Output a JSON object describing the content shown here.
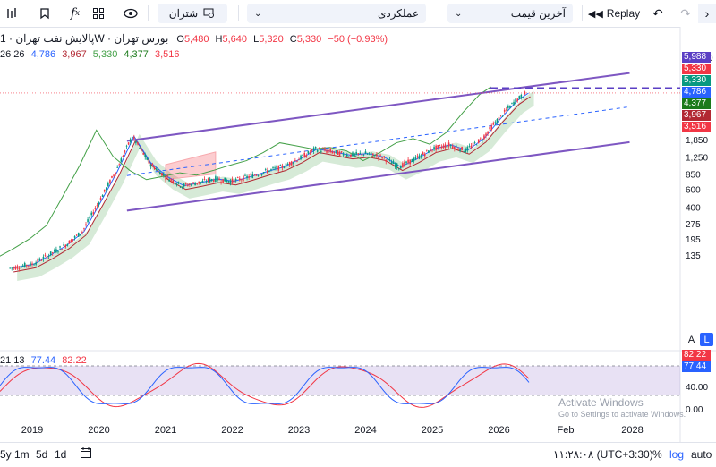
{
  "toolbar": {
    "compare_label": "شتران",
    "chart_type_label": "عملکردی",
    "price_type_label": "آخرین قیمت",
    "replay_label": "Replay"
  },
  "legend": {
    "title": "پالایش نفت تهران · 1W · بورس تهران",
    "o_label": "O",
    "o_value": "5,480",
    "h_label": "H",
    "h_value": "5,640",
    "l_label": "L",
    "l_value": "5,320",
    "c_label": "C",
    "c_value": "5,330",
    "change": "−50 (−0.93%)",
    "ichimoku_params": "26 26",
    "ichimoku_values": [
      "4,786",
      "3,967",
      "5,330",
      "4,377",
      "3,516"
    ]
  },
  "osc_legend": {
    "params": "21 13",
    "k": "77.44",
    "d": "82.22"
  },
  "price_badges": [
    {
      "value": "5,988",
      "color": "#5b3fc4"
    },
    {
      "value": "5,330",
      "color": "#f23645"
    },
    {
      "value": "5,330",
      "color": "#089981"
    },
    {
      "value": "4,786",
      "color": "#2962ff"
    },
    {
      "value": "4,377",
      "color": "#1b7a1b"
    },
    {
      "value": "3,967",
      "color": "#b22833"
    },
    {
      "value": "3,516",
      "color": "#f23645"
    }
  ],
  "osc_badges": [
    {
      "value": "82.22",
      "color": "#f23645"
    },
    {
      "value": "77.44",
      "color": "#2962ff"
    }
  ],
  "watermark": {
    "line1": "Activate Windows",
    "line2": "Go to Settings to activate Windows."
  },
  "bottom_bar": {
    "ranges": [
      "5y",
      "1m",
      "5d",
      "1d"
    ],
    "time": "۱۱:۲۸:۰۸ (UTC+3:30)",
    "percent": "%",
    "log": "log",
    "auto": "auto"
  },
  "axis_buttons": {
    "a": "A",
    "l": "L"
  },
  "chart_data": {
    "type": "candlestick",
    "title": "پالایش نفت تهران · 1W · بورس تهران",
    "scale": "log",
    "x_ticks": [
      "2019",
      "2020",
      "2021",
      "2022",
      "2023",
      "2024",
      "2025",
      "2026",
      "Feb",
      "2028"
    ],
    "y_ticks": [
      12000,
      2600,
      1850,
      1250,
      850,
      600,
      400,
      275,
      195,
      135
    ],
    "osc_ticks": [
      "40.00",
      "0.00"
    ],
    "ohlc_last": {
      "open": 5480,
      "high": 5640,
      "low": 5320,
      "close": 5330,
      "change": -50,
      "change_pct": -0.93
    },
    "price_path": [
      [
        "2018-09",
        100
      ],
      [
        "2019-01",
        110
      ],
      [
        "2019-04",
        135
      ],
      [
        "2019-07",
        170
      ],
      [
        "2019-10",
        230
      ],
      [
        "2020-01",
        450
      ],
      [
        "2020-04",
        900
      ],
      [
        "2020-07",
        2000
      ],
      [
        "2020-10",
        1100
      ],
      [
        "2021-01",
        800
      ],
      [
        "2021-04",
        650
      ],
      [
        "2021-07",
        700
      ],
      [
        "2021-10",
        760
      ],
      [
        "2022-01",
        720
      ],
      [
        "2022-04",
        800
      ],
      [
        "2022-07",
        900
      ],
      [
        "2022-10",
        1000
      ],
      [
        "2023-01",
        1200
      ],
      [
        "2023-04",
        1500
      ],
      [
        "2023-07",
        1400
      ],
      [
        "2023-10",
        1300
      ],
      [
        "2024-01",
        1350
      ],
      [
        "2024-04",
        1250
      ],
      [
        "2024-07",
        1000
      ],
      [
        "2024-10",
        1200
      ],
      [
        "2025-01",
        1500
      ],
      [
        "2025-04",
        1650
      ],
      [
        "2025-07",
        1450
      ],
      [
        "2025-10",
        1900
      ],
      [
        "2026-01",
        3000
      ],
      [
        "2026-04",
        4500
      ],
      [
        "2026-06",
        5330
      ]
    ],
    "channel": {
      "upper": [
        [
          "2019-10",
          1800
        ],
        [
          "2028-01",
          8400
        ]
      ],
      "middle": [
        [
          "2019-10",
          820
        ],
        [
          "2028-01",
          3900
        ]
      ],
      "lower": [
        [
          "2019-10",
          370
        ],
        [
          "2028-01",
          1750
        ]
      ],
      "upper_extension": [
        [
          "2019-10",
          2000
        ],
        [
          "2028-01",
          9400
        ]
      ]
    },
    "levels": [
      {
        "value": 5988,
        "style": "dashed",
        "color": "#5b3fc4"
      }
    ],
    "oscillator": {
      "name": "Stochastic",
      "params": "21 13",
      "k_last": 77.44,
      "d_last": 82.22,
      "band_upper": 80,
      "band_lower": 20
    }
  }
}
